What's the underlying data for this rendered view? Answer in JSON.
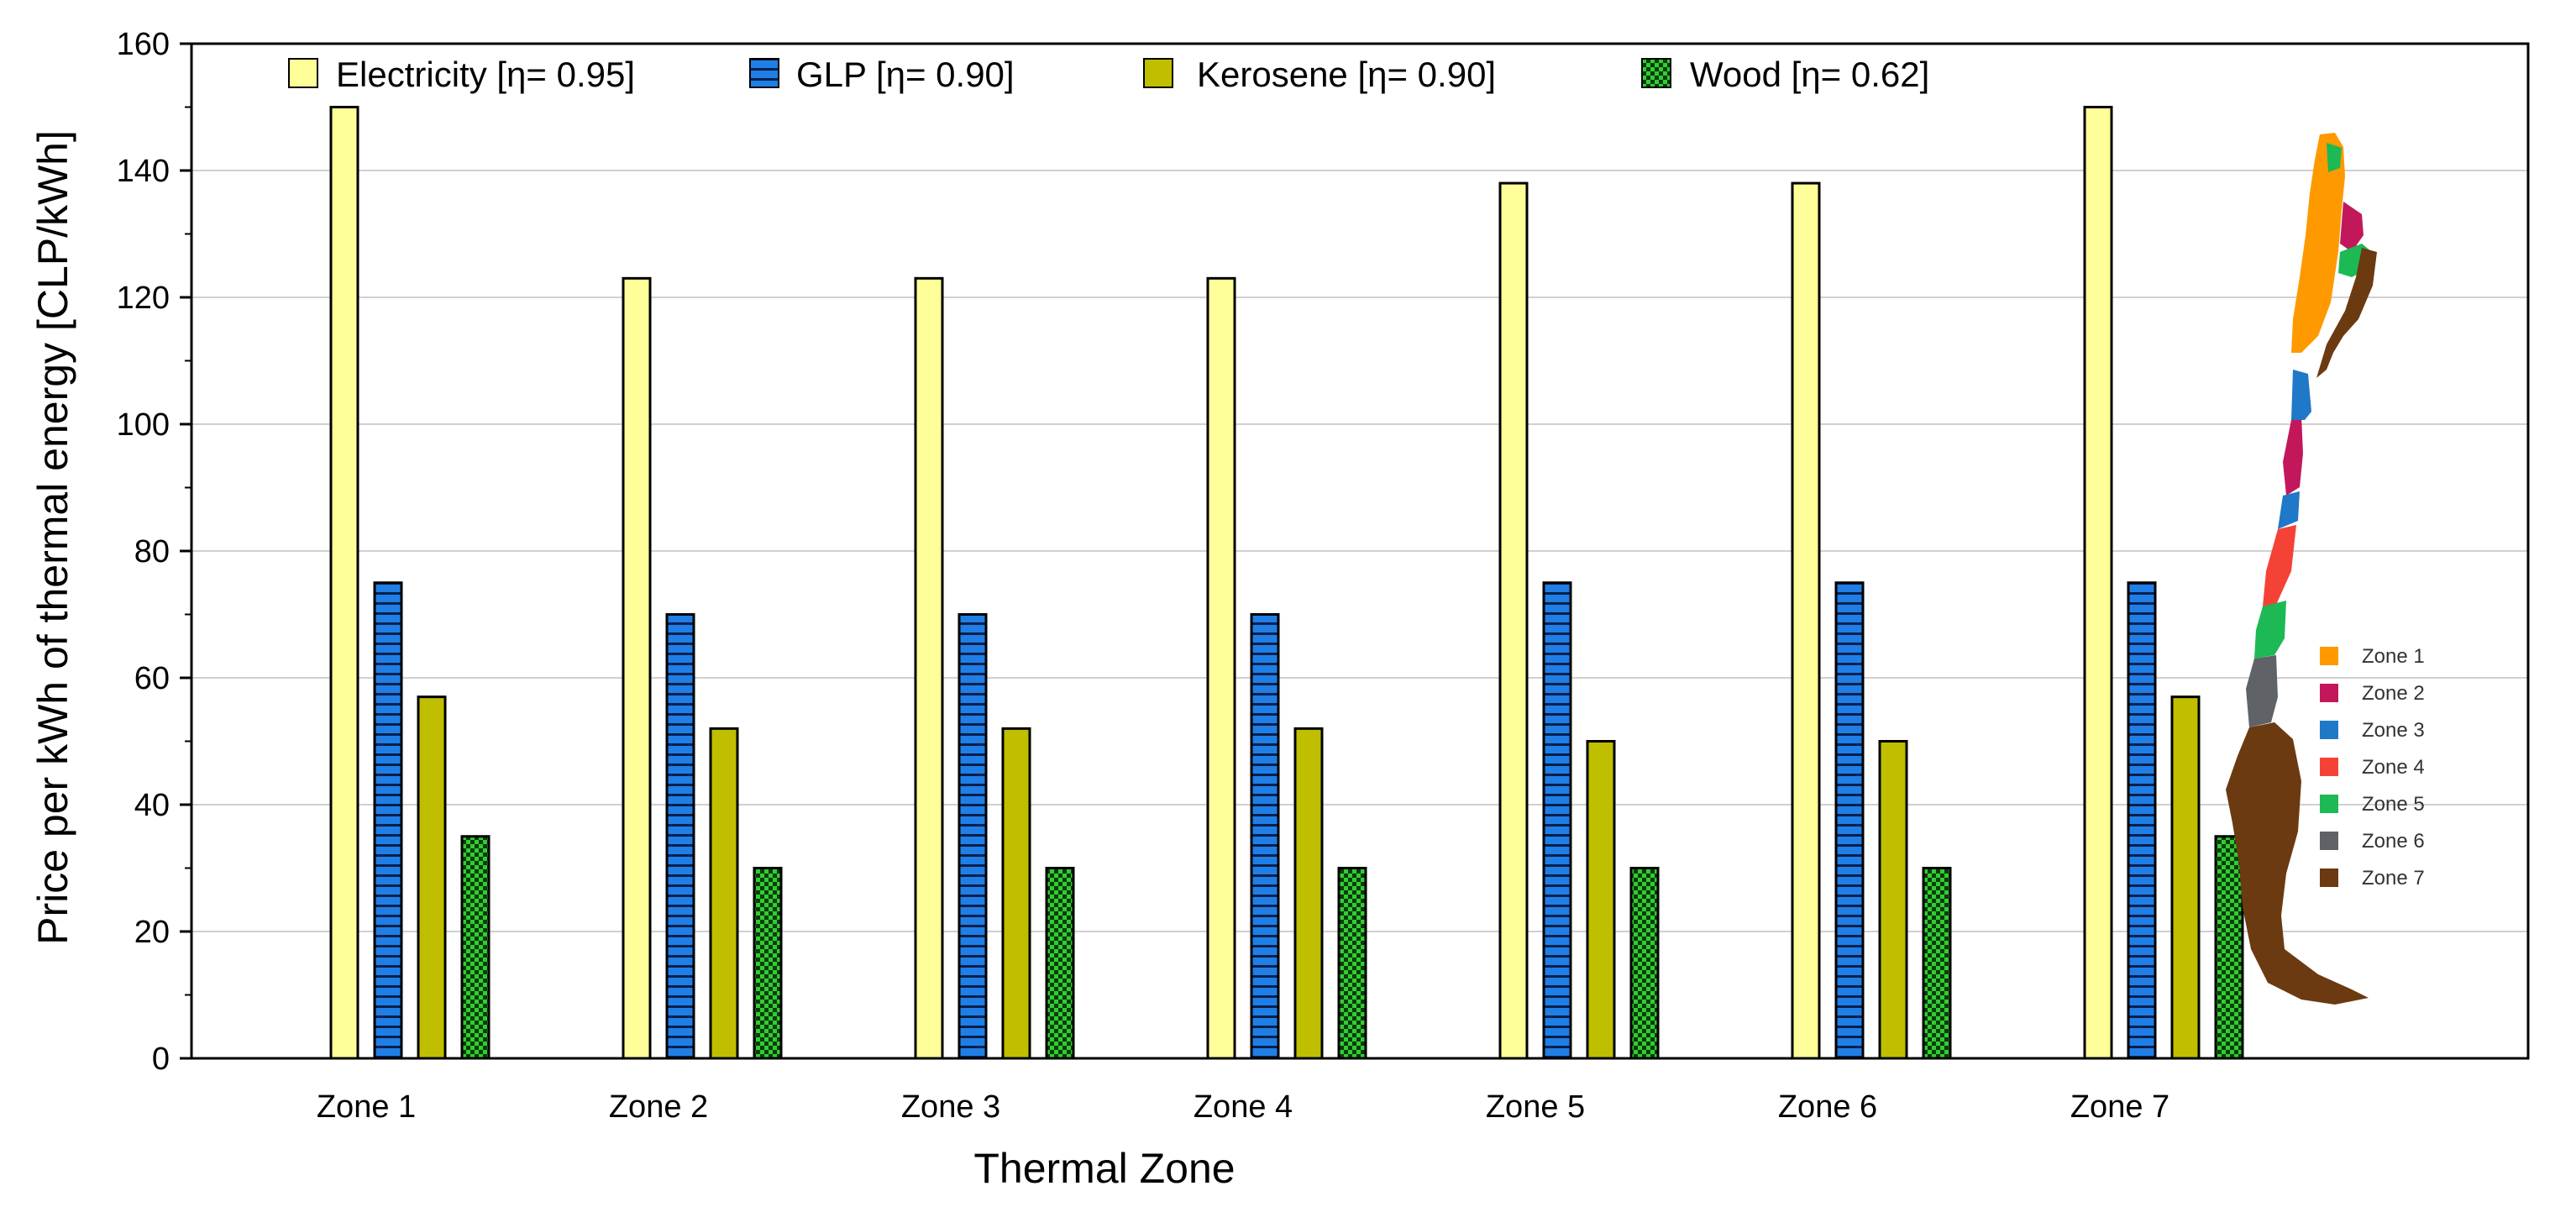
{
  "chart_data": {
    "type": "bar",
    "title": "",
    "xlabel": "Thermal Zone",
    "ylabel": "Price per kWh of thermal energy [CLP/kWh]",
    "ylim": [
      0,
      160
    ],
    "yticks": [
      0,
      20,
      40,
      60,
      80,
      100,
      120,
      140,
      160
    ],
    "grid": "horizontal",
    "legend_position": "top",
    "categories": [
      "Zone 1",
      "Zone 2",
      "Zone 3",
      "Zone 4",
      "Zone 5",
      "Zone 6",
      "Zone 7"
    ],
    "series": [
      {
        "name": "Electricity [η= 0.95]",
        "color": "#ffff99",
        "pattern": "solid",
        "values": [
          150,
          123,
          123,
          123,
          138,
          138,
          150
        ]
      },
      {
        "name": "GLP [η= 0.90]",
        "color": "#1f7fe6",
        "pattern": "horizontal-lines",
        "values": [
          75,
          70,
          70,
          70,
          75,
          75,
          75
        ]
      },
      {
        "name": "Kerosene [η= 0.90]",
        "color": "#bfbf00",
        "pattern": "solid",
        "values": [
          57,
          52,
          52,
          52,
          50,
          50,
          57
        ]
      },
      {
        "name": "Wood [η= 0.62]",
        "color": "#33cc33",
        "pattern": "checkered",
        "values": [
          35,
          30,
          30,
          30,
          30,
          30,
          35
        ]
      }
    ]
  },
  "map_inset": {
    "legend": [
      {
        "label": "Zone 1",
        "color": "#ff9900"
      },
      {
        "label": "Zone 2",
        "color": "#c2185b"
      },
      {
        "label": "Zone 3",
        "color": "#1f78c8"
      },
      {
        "label": "Zone 4",
        "color": "#f44336"
      },
      {
        "label": "Zone 5",
        "color": "#1db954"
      },
      {
        "label": "Zone 6",
        "color": "#5f6368"
      },
      {
        "label": "Zone 7",
        "color": "#6b3a10"
      }
    ]
  }
}
